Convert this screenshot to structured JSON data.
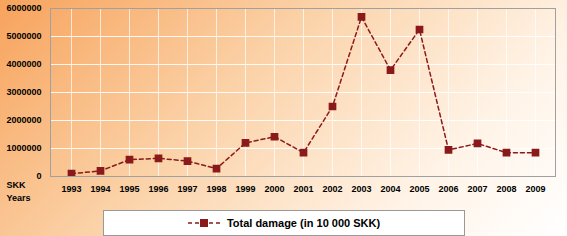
{
  "chart_data": {
    "type": "line",
    "x_label": "Years",
    "y_label": "SKK",
    "categories": [
      "1993",
      "1994",
      "1995",
      "1996",
      "1997",
      "1998",
      "1999",
      "2000",
      "2001",
      "2002",
      "2003",
      "2004",
      "2005",
      "2006",
      "2007",
      "2008",
      "2009"
    ],
    "series": [
      {
        "name": "Total damage (in 10 000 SKK)",
        "color": "#8b1a1a",
        "marker": "square",
        "line_style": "dashed",
        "values": [
          100000,
          200000,
          600000,
          650000,
          550000,
          280000,
          1200000,
          1420000,
          850000,
          2500000,
          5700000,
          3800000,
          5250000,
          950000,
          1180000,
          850000,
          850000
        ]
      }
    ],
    "ylim": [
      0,
      6000000
    ],
    "yticks": [
      0,
      1000000,
      2000000,
      3000000,
      4000000,
      5000000,
      6000000
    ],
    "grid": true,
    "legend": "bottom"
  }
}
